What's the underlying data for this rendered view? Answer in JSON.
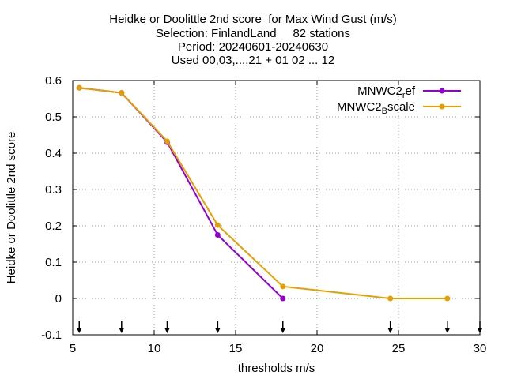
{
  "chart_data": {
    "type": "line",
    "title_lines": [
      "Heidke or Doolittle 2nd score  for Max Wind Gust (m/s)",
      "Selection: FinlandLand     82 stations",
      "Period: 20240601-20240630",
      "Used 00,03,...,21 + 01 02 ... 12"
    ],
    "xlabel": "thresholds m/s",
    "ylabel": "Heidke or Doolittle 2nd score",
    "xlim": [
      5,
      30
    ],
    "ylim": [
      -0.1,
      0.6
    ],
    "xticks": [
      5,
      10,
      15,
      20,
      25,
      30
    ],
    "yticks": [
      -0.1,
      0,
      0.1,
      0.2,
      0.3,
      0.4,
      0.5,
      0.6
    ],
    "ytick_labels": [
      "-0.1",
      "0",
      "0.1",
      "0.2",
      "0.3",
      "0.4",
      "0.5",
      "0.6"
    ],
    "grid": true,
    "legend_position": "top-right",
    "threshold_arrows": [
      5.4,
      8.0,
      10.8,
      13.9,
      17.9,
      24.5,
      28.0,
      30.0
    ],
    "series": [
      {
        "name": "MNWC2_ref",
        "legend_main": "MNWC2",
        "legend_sub": "r",
        "legend_rest": "ef",
        "color": "#9400d3",
        "x": [
          5.4,
          8.0,
          10.8,
          13.9,
          17.9
        ],
        "y": [
          0.58,
          0.566,
          0.43,
          0.175,
          0.0
        ]
      },
      {
        "name": "MNWC2_Bscale",
        "legend_main": "MNWC2",
        "legend_sub": "B",
        "legend_rest": "scale",
        "color": "#e69f00",
        "x": [
          5.4,
          8.0,
          10.8,
          13.9,
          17.9,
          24.5,
          28.0
        ],
        "y": [
          0.58,
          0.566,
          0.433,
          0.202,
          0.033,
          0.0,
          0.0
        ]
      }
    ]
  }
}
